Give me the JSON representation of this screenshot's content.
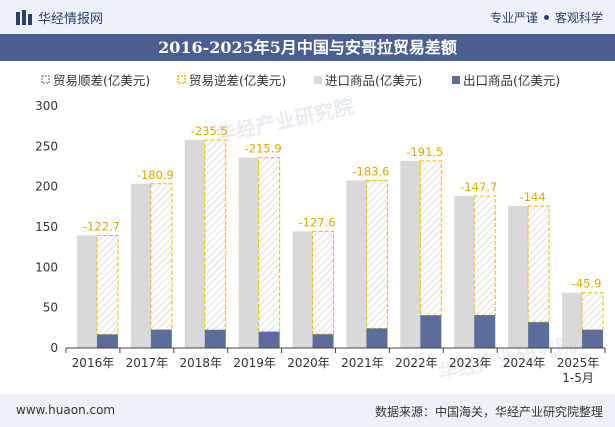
{
  "header": {
    "brand": "华经情报网",
    "tagline_left": "专业严谨",
    "tagline_right": "客观科学"
  },
  "title": "2016-2025年5月中国与安哥拉贸易差额",
  "footer": {
    "url": "www.huaon.com",
    "source": "数据来源：中国海关，华经产业研究院整理"
  },
  "watermark": "华经产业研究院",
  "colors": {
    "import_bar": "#d9d9d9",
    "export_bar": "#5b6e9a",
    "deficit_border": "#f5b800",
    "surplus": "#7f99c8",
    "header_bg": "#4a5f8f",
    "band_bg": "#eef1f7"
  },
  "chart_data": {
    "type": "bar",
    "categories": [
      "2016年",
      "2017年",
      "2018年",
      "2019年",
      "2020年",
      "2021年",
      "2022年",
      "2023年",
      "2024年",
      "2025年\n1-5月"
    ],
    "series": [
      {
        "name": "贸易顺差(亿美元)",
        "values": [
          null,
          null,
          null,
          null,
          null,
          null,
          null,
          null,
          null,
          null
        ]
      },
      {
        "name": "贸易逆差(亿美元)",
        "values": [
          -122.7,
          -180.9,
          -235.5,
          -215.9,
          -127.6,
          -183.6,
          -191.5,
          -147.7,
          -144,
          -45.9
        ]
      },
      {
        "name": "进口商品(亿美元)",
        "values": [
          139.5,
          203.6,
          257.9,
          236.0,
          144.6,
          207.8,
          232.0,
          188.5,
          176.0,
          68.5
        ]
      },
      {
        "name": "出口商品(亿美元)",
        "values": [
          16.8,
          22.7,
          22.4,
          20.1,
          17.0,
          24.2,
          40.5,
          40.8,
          32.0,
          22.6
        ]
      }
    ],
    "data_labels": [
      "-122.7",
      "-180.9",
      "-235.5",
      "-215.9",
      "-127.6",
      "-183.6",
      "-191.5",
      "-147.7",
      "-144",
      "-45.9"
    ],
    "y_ticks": [
      "0",
      "50",
      "100",
      "150",
      "200",
      "250",
      "300"
    ],
    "ylim": [
      0,
      300
    ],
    "legend_position": "top-left",
    "grid": false
  }
}
